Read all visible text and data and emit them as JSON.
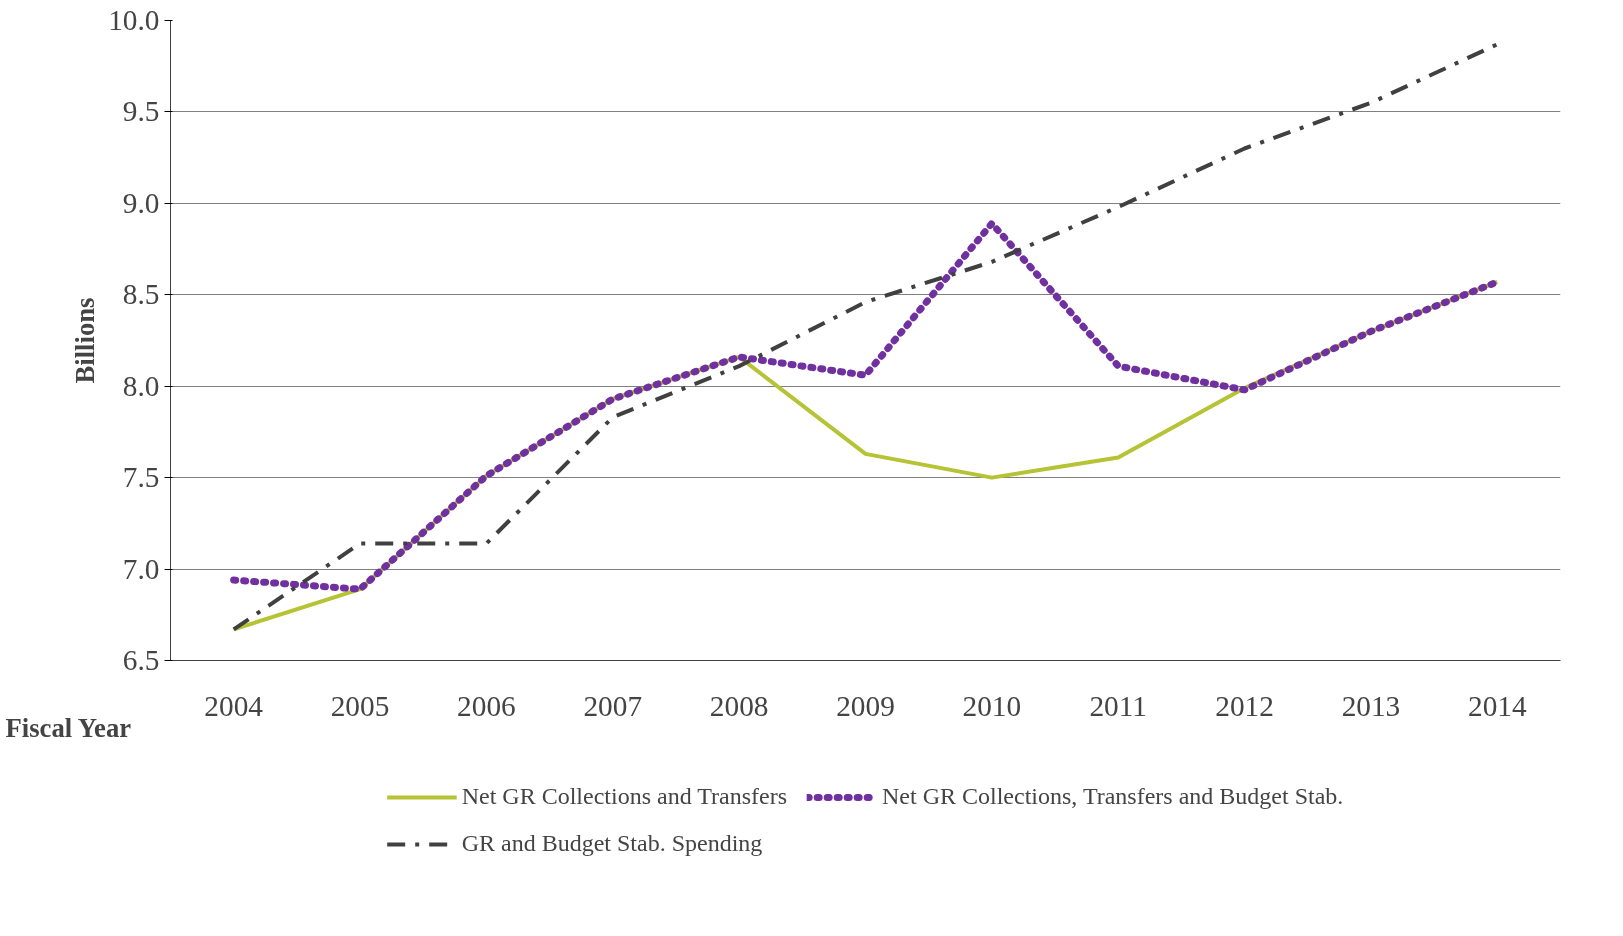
{
  "chart_data": {
    "type": "line",
    "xlabel": "Fiscal Year",
    "ylabel": "Billions",
    "categories": [
      "2004",
      "2005",
      "2006",
      "2007",
      "2008",
      "2009",
      "2010",
      "2011",
      "2012",
      "2013",
      "2014"
    ],
    "ylim": [
      6.5,
      10.0
    ],
    "yticks": [
      {
        "value": 6.5,
        "label": "6.5"
      },
      {
        "value": 7.0,
        "label": "7.0"
      },
      {
        "value": 7.5,
        "label": "7.5"
      },
      {
        "value": 8.0,
        "label": "8.0"
      },
      {
        "value": 8.5,
        "label": "8.5"
      },
      {
        "value": 9.0,
        "label": "9.0"
      },
      {
        "value": 9.5,
        "label": "9.5"
      },
      {
        "value": 10.0,
        "label": "10.0"
      }
    ],
    "grid": "y",
    "legend": "bottom",
    "series": [
      {
        "name": "Net GR Collections and Transfers",
        "color": "#b5c334",
        "line_style": "solid",
        "values": [
          6.67,
          6.89,
          7.51,
          7.93,
          8.16,
          7.63,
          7.5,
          7.61,
          7.99,
          8.3,
          8.57
        ]
      },
      {
        "name": "Net GR Collections, Transfers and Budget Stab.",
        "color": "#7030a0",
        "line_style": "dotted",
        "values": [
          6.94,
          6.89,
          7.51,
          7.93,
          8.16,
          8.06,
          8.89,
          8.11,
          7.98,
          8.3,
          8.57
        ]
      },
      {
        "name": "GR and Budget Stab. Spending",
        "color": "#404040",
        "line_style": "dashdot",
        "values": [
          6.67,
          7.14,
          7.14,
          7.83,
          8.11,
          8.46,
          8.68,
          8.98,
          9.3,
          9.55,
          9.87
        ]
      }
    ]
  }
}
